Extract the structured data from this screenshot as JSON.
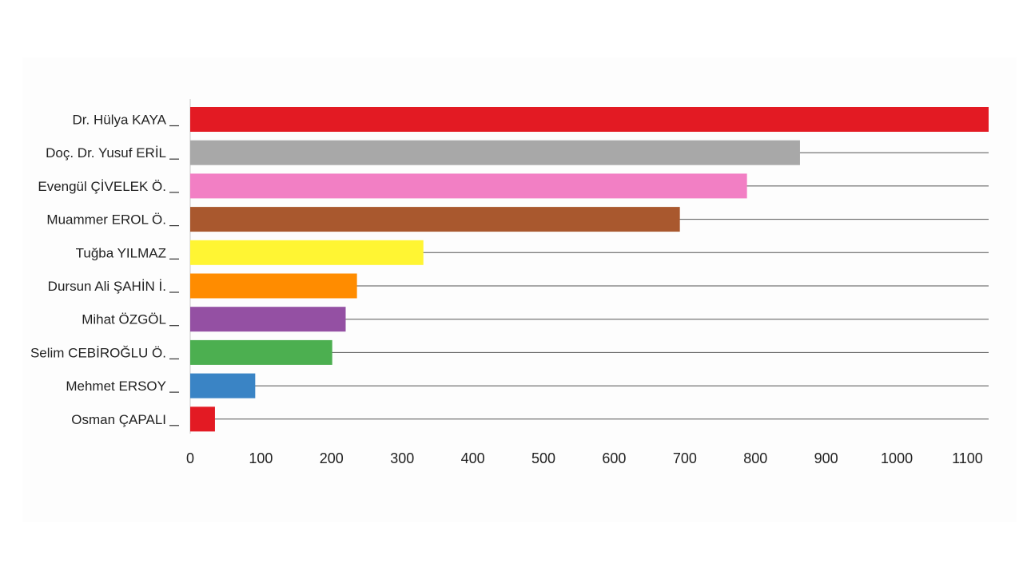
{
  "chart_data": {
    "type": "bar",
    "orientation": "horizontal",
    "categories": [
      "Dr. Hülya KAYA",
      "Doç. Dr. Yusuf ERİL",
      "Evengül ÇİVELEK Ö.",
      "Muammer EROL Ö.",
      "Tuğba YILMAZ",
      "Dursun Ali ŞAHİN İ.",
      "Mihat ÖZGÖL",
      "Selim CEBİROĞLU Ö.",
      "Mehmet ERSOY",
      "Osman ÇAPALI"
    ],
    "values": [
      1130,
      863,
      788,
      693,
      330,
      236,
      220,
      201,
      92,
      35
    ],
    "colors": [
      "#e31a23",
      "#a8a8a8",
      "#f27fc4",
      "#a9582e",
      "#fff533",
      "#ff8c00",
      "#9450a3",
      "#4caf50",
      "#3a84c5",
      "#e31a23"
    ],
    "x_ticks": [
      "0",
      "100",
      "200",
      "300",
      "400",
      "500",
      "600",
      "700",
      "800",
      "900",
      "1000",
      "1100"
    ],
    "xlim": [
      0,
      1130
    ],
    "title": "",
    "xlabel": "",
    "ylabel": "",
    "grid": "horizontal gridlines at each category",
    "legend": "none"
  }
}
